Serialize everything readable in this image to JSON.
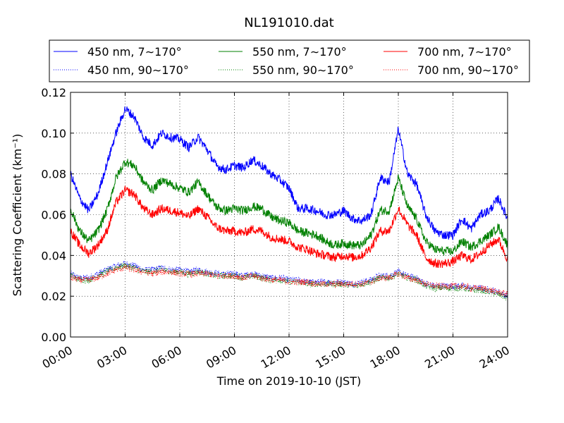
{
  "chart_data": {
    "type": "line",
    "title": "NL191010.dat",
    "xlabel": "Time on 2019-10-10 (JST)",
    "ylabel": "Scattering Coefficient (km⁻¹)",
    "xlim": [
      0,
      24
    ],
    "ylim": [
      0,
      0.12
    ],
    "grid": true,
    "legend_position": "top",
    "x_tick_values": [
      0,
      3,
      6,
      9,
      12,
      15,
      18,
      21,
      24
    ],
    "x_tick_labels": [
      "00:00",
      "03:00",
      "06:00",
      "09:00",
      "12:00",
      "15:00",
      "18:00",
      "21:00",
      "24:00"
    ],
    "y_tick_values": [
      0,
      0.02,
      0.04,
      0.06,
      0.08,
      0.1,
      0.12
    ],
    "y_tick_labels": [
      "0.00",
      "0.02",
      "0.04",
      "0.06",
      "0.08",
      "0.10",
      "0.12"
    ],
    "x_hours": [
      0,
      0.5,
      1,
      1.5,
      2,
      2.5,
      3,
      3.5,
      4,
      4.5,
      5,
      5.5,
      6,
      6.5,
      7,
      7.5,
      8,
      8.5,
      9,
      9.5,
      10,
      10.5,
      11,
      11.5,
      12,
      12.5,
      13,
      13.5,
      14,
      14.5,
      15,
      15.5,
      16,
      16.5,
      17,
      17.5,
      18,
      18.5,
      19,
      19.5,
      20,
      20.5,
      21,
      21.5,
      22,
      22.5,
      23,
      23.5,
      24
    ],
    "series": [
      {
        "name": "450 nm, 7∼170°",
        "color": "#0000ff",
        "style": "solid",
        "values": [
          0.08,
          0.068,
          0.062,
          0.07,
          0.085,
          0.1,
          0.112,
          0.108,
          0.098,
          0.094,
          0.1,
          0.098,
          0.097,
          0.093,
          0.098,
          0.092,
          0.084,
          0.082,
          0.084,
          0.083,
          0.087,
          0.084,
          0.08,
          0.077,
          0.073,
          0.063,
          0.063,
          0.062,
          0.06,
          0.06,
          0.062,
          0.058,
          0.057,
          0.06,
          0.078,
          0.076,
          0.102,
          0.08,
          0.075,
          0.06,
          0.052,
          0.05,
          0.05,
          0.058,
          0.053,
          0.06,
          0.062,
          0.068,
          0.058
        ]
      },
      {
        "name": "450 nm, 90∼170°",
        "color": "#0000ff",
        "style": "dotted",
        "values": [
          0.031,
          0.029,
          0.029,
          0.031,
          0.033,
          0.035,
          0.036,
          0.035,
          0.033,
          0.033,
          0.034,
          0.033,
          0.033,
          0.032,
          0.033,
          0.032,
          0.031,
          0.031,
          0.031,
          0.03,
          0.031,
          0.03,
          0.029,
          0.029,
          0.028,
          0.028,
          0.027,
          0.027,
          0.027,
          0.027,
          0.027,
          0.026,
          0.027,
          0.028,
          0.03,
          0.03,
          0.032,
          0.03,
          0.029,
          0.026,
          0.025,
          0.025,
          0.025,
          0.025,
          0.024,
          0.024,
          0.023,
          0.022,
          0.02
        ]
      },
      {
        "name": "550 nm, 7∼170°",
        "color": "#008000",
        "style": "solid",
        "values": [
          0.063,
          0.052,
          0.047,
          0.052,
          0.062,
          0.078,
          0.086,
          0.084,
          0.076,
          0.072,
          0.077,
          0.075,
          0.073,
          0.071,
          0.076,
          0.07,
          0.064,
          0.062,
          0.063,
          0.062,
          0.064,
          0.063,
          0.059,
          0.057,
          0.056,
          0.052,
          0.051,
          0.05,
          0.047,
          0.045,
          0.046,
          0.045,
          0.045,
          0.05,
          0.062,
          0.062,
          0.078,
          0.064,
          0.058,
          0.047,
          0.043,
          0.042,
          0.042,
          0.047,
          0.044,
          0.047,
          0.05,
          0.054,
          0.045
        ]
      },
      {
        "name": "550 nm, 90∼170°",
        "color": "#008000",
        "style": "dotted",
        "values": [
          0.03,
          0.028,
          0.028,
          0.03,
          0.032,
          0.034,
          0.035,
          0.034,
          0.032,
          0.032,
          0.033,
          0.032,
          0.032,
          0.031,
          0.032,
          0.031,
          0.03,
          0.03,
          0.03,
          0.029,
          0.03,
          0.029,
          0.028,
          0.028,
          0.027,
          0.027,
          0.026,
          0.026,
          0.026,
          0.026,
          0.026,
          0.025,
          0.026,
          0.027,
          0.029,
          0.029,
          0.031,
          0.029,
          0.028,
          0.025,
          0.024,
          0.024,
          0.024,
          0.024,
          0.023,
          0.023,
          0.022,
          0.021,
          0.019
        ]
      },
      {
        "name": "700 nm, 7∼170°",
        "color": "#ff0000",
        "style": "solid",
        "values": [
          0.052,
          0.045,
          0.041,
          0.045,
          0.052,
          0.066,
          0.072,
          0.07,
          0.063,
          0.06,
          0.063,
          0.062,
          0.061,
          0.059,
          0.063,
          0.059,
          0.054,
          0.052,
          0.052,
          0.051,
          0.053,
          0.052,
          0.049,
          0.048,
          0.047,
          0.044,
          0.043,
          0.041,
          0.04,
          0.039,
          0.04,
          0.039,
          0.04,
          0.044,
          0.052,
          0.052,
          0.063,
          0.055,
          0.05,
          0.039,
          0.036,
          0.036,
          0.037,
          0.04,
          0.038,
          0.041,
          0.045,
          0.048,
          0.038
        ]
      },
      {
        "name": "700 nm, 90∼170°",
        "color": "#ff0000",
        "style": "dotted",
        "values": [
          0.029,
          0.028,
          0.028,
          0.029,
          0.031,
          0.033,
          0.034,
          0.033,
          0.032,
          0.031,
          0.032,
          0.032,
          0.031,
          0.031,
          0.031,
          0.031,
          0.03,
          0.03,
          0.03,
          0.029,
          0.03,
          0.029,
          0.028,
          0.028,
          0.027,
          0.027,
          0.027,
          0.026,
          0.026,
          0.026,
          0.026,
          0.026,
          0.026,
          0.027,
          0.029,
          0.029,
          0.031,
          0.029,
          0.028,
          0.026,
          0.025,
          0.025,
          0.025,
          0.025,
          0.024,
          0.024,
          0.023,
          0.022,
          0.021
        ]
      }
    ]
  }
}
